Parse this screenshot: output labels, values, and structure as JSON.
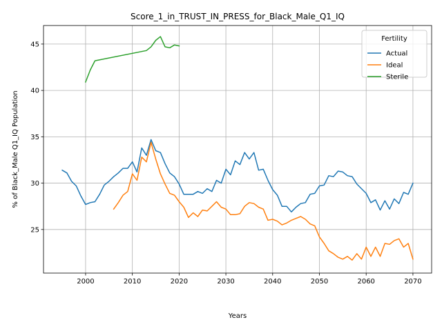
{
  "chart_data": {
    "type": "line",
    "title": "Score_1_in_TRUST_IN_PRESS_for_Black_Male_Q1_IQ",
    "xlabel": "Years",
    "ylabel": "% of Black_Male Q1_IQ Population",
    "xlim": [
      1991,
      2074
    ],
    "ylim": [
      20.3,
      47.0
    ],
    "xticks": [
      2000,
      2010,
      2020,
      2030,
      2040,
      2050,
      2060,
      2070
    ],
    "yticks": [
      25,
      30,
      35,
      40,
      45
    ],
    "grid": true,
    "legend": {
      "title": "Fertility",
      "placement": "top-right"
    },
    "series": [
      {
        "name": "Actual",
        "color": "#1f77b4",
        "x": [
          1995,
          1996,
          1997,
          1998,
          1999,
          2000,
          2001,
          2002,
          2003,
          2004,
          2005,
          2006,
          2007,
          2008,
          2009,
          2010,
          2011,
          2012,
          2013,
          2014,
          2015,
          2016,
          2017,
          2018,
          2019,
          2020,
          2021,
          2022,
          2023,
          2024,
          2025,
          2026,
          2027,
          2028,
          2029,
          2030,
          2031,
          2032,
          2033,
          2034,
          2035,
          2036,
          2037,
          2038,
          2039,
          2040,
          2041,
          2042,
          2043,
          2044,
          2045,
          2046,
          2047,
          2048,
          2049,
          2050,
          2051,
          2052,
          2053,
          2054,
          2055,
          2056,
          2057,
          2058,
          2059,
          2060,
          2061,
          2062,
          2063,
          2064,
          2065,
          2066,
          2067,
          2068,
          2069,
          2070
        ],
        "values": [
          31.4,
          31.1,
          30.2,
          29.7,
          28.6,
          27.7,
          27.9,
          28.0,
          28.8,
          29.8,
          30.2,
          30.7,
          31.1,
          31.6,
          31.6,
          32.3,
          31.2,
          33.8,
          33.0,
          34.7,
          33.5,
          33.3,
          32.1,
          31.1,
          30.7,
          29.9,
          28.8,
          28.8,
          28.8,
          29.1,
          28.9,
          29.4,
          29.1,
          30.3,
          30.0,
          31.5,
          30.9,
          32.4,
          32.0,
          33.3,
          32.6,
          33.3,
          31.4,
          31.5,
          30.3,
          29.3,
          28.7,
          27.5,
          27.5,
          26.9,
          27.4,
          27.8,
          27.9,
          28.8,
          28.9,
          29.7,
          29.8,
          30.8,
          30.7,
          31.3,
          31.2,
          30.8,
          30.7,
          29.9,
          29.4,
          28.9,
          27.9,
          28.2,
          27.1,
          28.1,
          27.2,
          28.3,
          27.8,
          29.0,
          28.8,
          30.0
        ]
      },
      {
        "name": "Ideal",
        "color": "#ff7f0e",
        "x": [
          2006,
          2007,
          2008,
          2009,
          2010,
          2011,
          2012,
          2013,
          2014,
          2015,
          2016,
          2017,
          2018,
          2019,
          2020,
          2021,
          2022,
          2023,
          2024,
          2025,
          2026,
          2027,
          2028,
          2029,
          2030,
          2031,
          2032,
          2033,
          2034,
          2035,
          2036,
          2037,
          2038,
          2039,
          2040,
          2041,
          2042,
          2043,
          2044,
          2045,
          2046,
          2047,
          2048,
          2049,
          2050,
          2051,
          2052,
          2053,
          2054,
          2055,
          2056,
          2057,
          2058,
          2059,
          2060,
          2061,
          2062,
          2063,
          2064,
          2065,
          2066,
          2067,
          2068,
          2069,
          2070
        ],
        "values": [
          27.2,
          27.9,
          28.7,
          29.1,
          31.0,
          30.3,
          32.8,
          32.3,
          34.4,
          32.6,
          31.0,
          29.9,
          28.9,
          28.7,
          28.0,
          27.4,
          26.3,
          26.8,
          26.4,
          27.1,
          27.0,
          27.5,
          28.0,
          27.4,
          27.2,
          26.6,
          26.6,
          26.7,
          27.5,
          27.9,
          27.8,
          27.4,
          27.2,
          26.0,
          26.1,
          25.9,
          25.5,
          25.7,
          26.0,
          26.2,
          26.4,
          26.1,
          25.6,
          25.4,
          24.2,
          23.5,
          22.7,
          22.4,
          22.0,
          21.8,
          22.1,
          21.7,
          22.4,
          21.8,
          23.1,
          22.1,
          23.1,
          22.1,
          23.5,
          23.4,
          23.8,
          24.0,
          23.1,
          23.5,
          21.8
        ]
      },
      {
        "name": "Sterile",
        "color": "#2ca02c",
        "x": [
          2000,
          2001,
          2002,
          2013,
          2014,
          2015,
          2016,
          2017,
          2018,
          2019,
          2020
        ],
        "values": [
          40.9,
          42.2,
          43.2,
          44.3,
          44.7,
          45.4,
          45.8,
          44.7,
          44.6,
          44.9,
          44.8
        ]
      }
    ]
  }
}
